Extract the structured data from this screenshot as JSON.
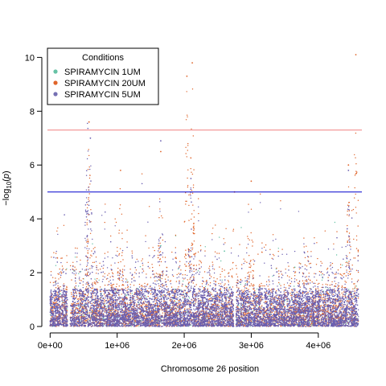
{
  "chart_data": {
    "type": "scatter",
    "subtype": "manhattan",
    "title": "",
    "xlabel": "Chromosome 26 position",
    "ylabel_parts": [
      "−log",
      "10",
      "(",
      "p",
      ")"
    ],
    "xlim": [
      -40000,
      4650000
    ],
    "ylim": [
      0,
      10.4
    ],
    "x_ticks": [
      {
        "value": 0,
        "label": "0e+00"
      },
      {
        "value": 1000000,
        "label": "1e+06"
      },
      {
        "value": 2000000,
        "label": "2e+06"
      },
      {
        "value": 3000000,
        "label": "3e+06"
      },
      {
        "value": 4000000,
        "label": "4e+06"
      }
    ],
    "y_ticks": [
      {
        "value": 0,
        "label": "0"
      },
      {
        "value": 2,
        "label": "2"
      },
      {
        "value": 4,
        "label": "4"
      },
      {
        "value": 6,
        "label": "6"
      },
      {
        "value": 8,
        "label": "8"
      },
      {
        "value": 10,
        "label": "10"
      }
    ],
    "thresholds": [
      {
        "value": 7.3,
        "color": "#f08080"
      },
      {
        "value": 5.0,
        "color": "#0000cd"
      }
    ],
    "legend": {
      "title": "Conditions",
      "placement": "top-left",
      "entries": [
        {
          "label": "SPIRAMYCIN 1UM",
          "color": "#66c2a5"
        },
        {
          "label": "SPIRAMYCIN 20UM",
          "color": "#e0652a"
        },
        {
          "label": "SPIRAMYCIN 5UM",
          "color": "#7570b3"
        }
      ]
    },
    "series": [
      {
        "name": "SPIRAMYCIN 1UM",
        "color": "#66c2a5",
        "peaks": [
          {
            "x": 1650000,
            "y": 3.0
          },
          {
            "x": 2600000,
            "y": 2.8
          },
          {
            "x": 3650000,
            "y": 2.2
          }
        ]
      },
      {
        "name": "SPIRAMYCIN 20UM",
        "color": "#e0652a",
        "peaks": [
          {
            "x": 580000,
            "y": 7.6
          },
          {
            "x": 1050000,
            "y": 5.8
          },
          {
            "x": 1650000,
            "y": 6.5
          },
          {
            "x": 2040000,
            "y": 9.3
          },
          {
            "x": 2120000,
            "y": 9.8
          },
          {
            "x": 2750000,
            "y": 5.0
          },
          {
            "x": 3000000,
            "y": 5.4
          },
          {
            "x": 4450000,
            "y": 6.0
          },
          {
            "x": 4560000,
            "y": 10.1
          }
        ]
      },
      {
        "name": "SPIRAMYCIN 5UM",
        "color": "#6a5fb0",
        "peaks": [
          {
            "x": 560000,
            "y": 8.6
          },
          {
            "x": 600000,
            "y": 7.0
          },
          {
            "x": 1650000,
            "y": 6.9
          },
          {
            "x": 2100000,
            "y": 5.5
          },
          {
            "x": 4450000,
            "y": 5.8
          }
        ]
      }
    ]
  }
}
